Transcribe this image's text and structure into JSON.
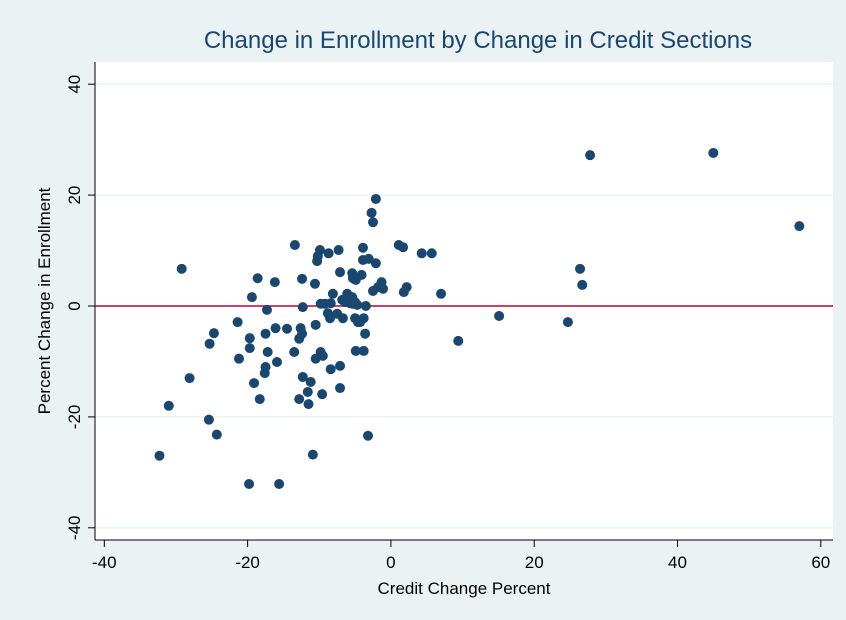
{
  "chart_data": {
    "type": "scatter",
    "title": "Change in Enrollment  by  Change in Credit Sections",
    "x_label": "Credit Change Percent",
    "y_label": "Percent Change in Enrollment",
    "color": "#1a476f",
    "x": [
      -32.3,
      -31.0,
      -29.2,
      -28.1,
      -25.4,
      -25.3,
      -24.7,
      -24.3,
      -21.4,
      -21.2,
      -19.8,
      -19.7,
      -19.7,
      -19.4,
      -19.1,
      -18.6,
      -18.3,
      -17.6,
      -17.5,
      -17.5,
      -17.3,
      -17.2,
      -16.2,
      -16.1,
      -15.9,
      -15.6,
      -14.5,
      -13.5,
      -13.4,
      -12.8,
      -12.8,
      -12.6,
      -12.4,
      -12.4,
      -12.3,
      -12.3,
      -11.6,
      -11.5,
      -11.2,
      -10.9,
      -10.6,
      -10.5,
      -10.5,
      -10.3,
      -10.2,
      -9.9,
      -9.8,
      -9.8,
      -9.6,
      -9.5,
      -9.2,
      -8.8,
      -8.7,
      -8.5,
      -8.4,
      -8.4,
      -8.1,
      -7.5,
      -7.3,
      -7.1,
      -7.1,
      -7.1,
      -6.8,
      -6.7,
      -6.4,
      -6.1,
      -6.0,
      -5.7,
      -5.4,
      -5.4,
      -5.3,
      -5.3,
      -5.0,
      -5.0,
      -4.9,
      -4.9,
      -4.7,
      -4.6,
      -4.3,
      -4.1,
      -3.9,
      -3.9,
      -3.8,
      -3.8,
      -3.6,
      -3.5,
      -3.2,
      -3.1,
      -2.7,
      -2.5,
      -2.5,
      -2.1,
      -2.1,
      -1.8,
      -1.3,
      -1.1,
      1.1,
      1.7,
      1.8,
      2.2,
      4.3,
      5.7,
      7.0,
      9.4,
      15.1,
      24.7,
      26.4,
      26.7,
      27.8,
      45.0,
      57.0
    ],
    "y": [
      -27.0,
      -18.0,
      6.7,
      -13.0,
      -20.5,
      -6.8,
      -4.9,
      -23.2,
      -2.9,
      -9.5,
      -32.1,
      -5.8,
      -7.6,
      1.6,
      -13.9,
      5.0,
      -16.8,
      -12.1,
      -11.0,
      -5.0,
      -0.7,
      -8.3,
      4.3,
      -4.0,
      -10.1,
      -32.1,
      -4.1,
      -8.3,
      11.0,
      -5.9,
      -16.8,
      -4.0,
      -5.0,
      4.9,
      -0.2,
      -12.8,
      -15.5,
      -17.7,
      -13.7,
      -26.8,
      4.0,
      -3.4,
      -9.5,
      8.1,
      9.0,
      10.1,
      0.4,
      -8.3,
      -15.9,
      -9.0,
      0.4,
      -1.3,
      9.5,
      -2.2,
      -11.4,
      0.5,
      2.2,
      -1.4,
      10.1,
      -14.8,
      -10.8,
      6.1,
      1.1,
      -2.2,
      0.7,
      2.2,
      1.1,
      0.5,
      5.9,
      1.6,
      5.0,
      0.4,
      0.7,
      -2.2,
      4.7,
      -8.1,
      0.2,
      -2.9,
      -2.9,
      5.6,
      10.5,
      8.3,
      -2.2,
      -8.1,
      -5.0,
      0.0,
      -23.4,
      8.5,
      16.8,
      15.1,
      2.7,
      19.3,
      7.7,
      3.4,
      4.3,
      3.1,
      11.0,
      10.6,
      2.5,
      3.4,
      9.5,
      9.5,
      2.2,
      -6.3,
      -1.8,
      -2.9,
      6.7,
      3.8,
      27.2,
      27.6,
      14.4
    ],
    "xlim": [
      -41.3,
      61.7
    ],
    "ylim": [
      -42.2,
      44
    ],
    "xticks": [
      -40,
      -20,
      0,
      20,
      40,
      60
    ],
    "yticks": [
      -40,
      -20,
      0,
      20,
      40
    ],
    "grid": true,
    "reference_line": {
      "y": 0,
      "color": "#c10534"
    }
  }
}
